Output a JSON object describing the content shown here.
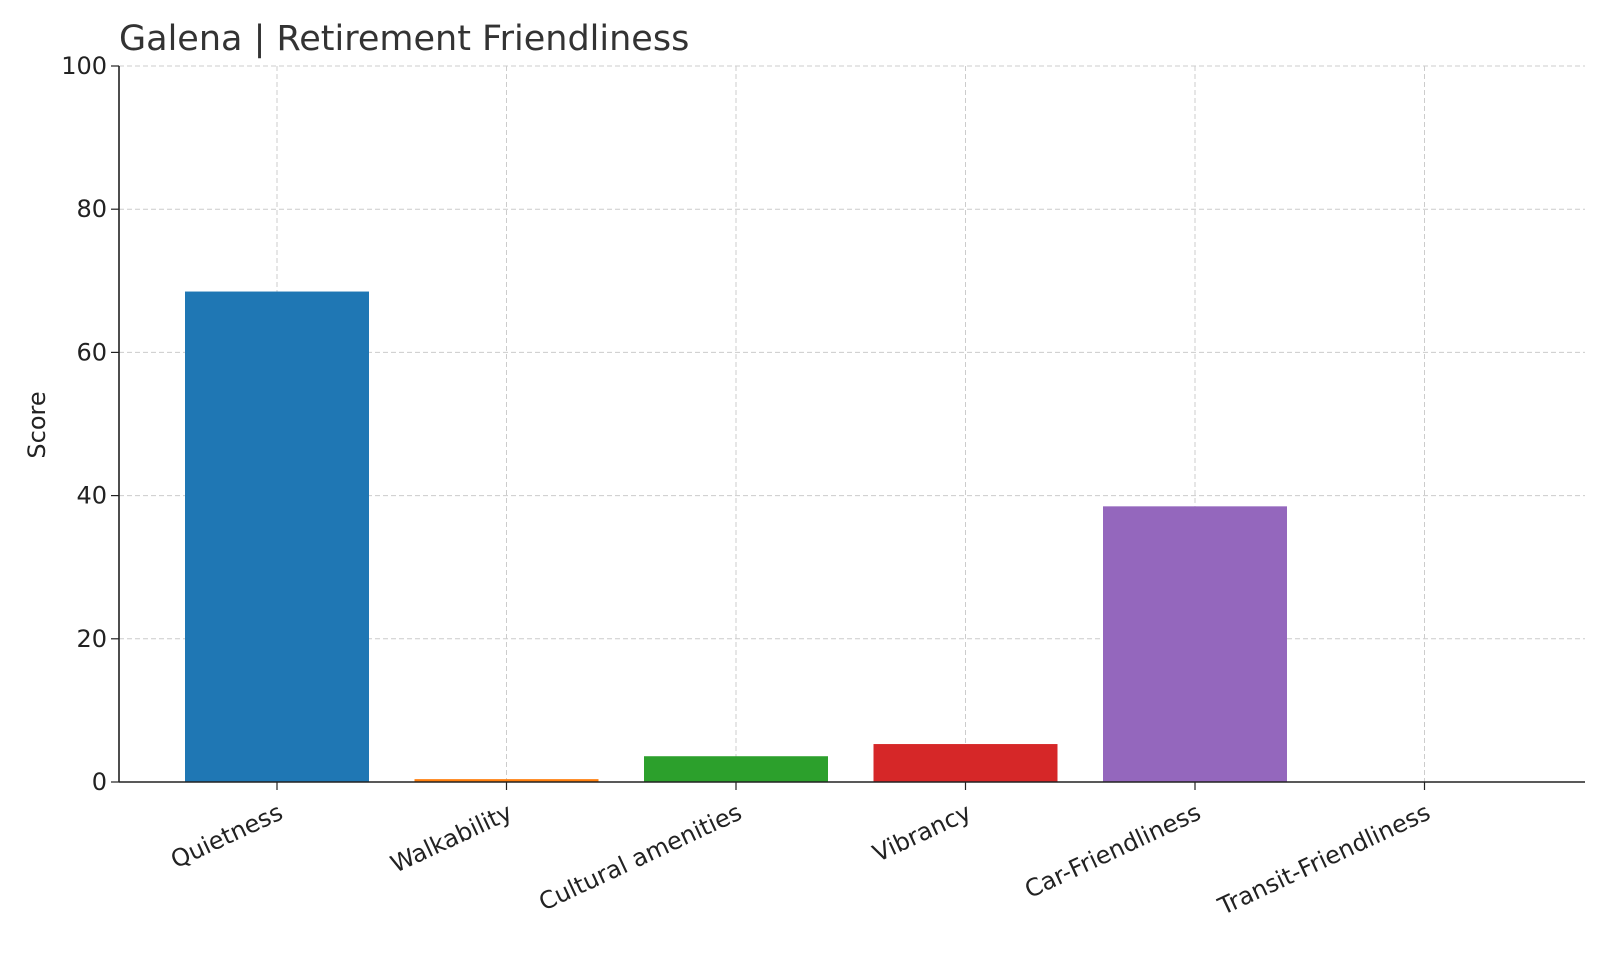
{
  "chart_data": {
    "type": "bar",
    "title": "Galena | Retirement Friendliness",
    "xlabel": "",
    "ylabel": "Score",
    "ylim": [
      0,
      100
    ],
    "yticks": [
      0,
      20,
      40,
      60,
      80,
      100
    ],
    "grid": true,
    "categories": [
      "Quietness",
      "Walkability",
      "Cultural amenities",
      "Vibrancy",
      "Car-Friendliness",
      "Transit-Friendliness"
    ],
    "values": [
      68.5,
      0.4,
      3.6,
      5.3,
      38.5,
      0
    ],
    "colors": [
      "#1f77b4",
      "#ff7f0e",
      "#2ca02c",
      "#d62728",
      "#9467bd",
      "#8c564b"
    ]
  }
}
